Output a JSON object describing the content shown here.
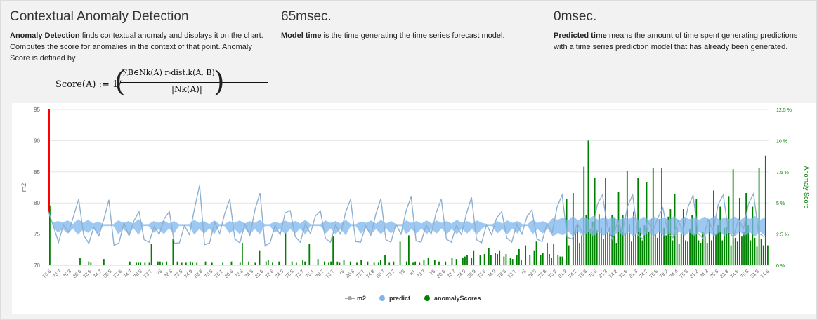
{
  "header": {
    "detection": {
      "title": "Contextual Anomaly Detection",
      "desc_bold": "Anomaly Detection",
      "desc_rest": " finds contextual anomaly and displays it on the chart. Computes the score for anomalies in the context of that point. Anomaly Score is defined by"
    },
    "model_time": {
      "title": "65msec.",
      "desc_bold": "Model time",
      "desc_rest": " is the time generating the time series forecast model."
    },
    "predicted_time": {
      "title": "0msec.",
      "desc_bold": "Predicted time",
      "desc_rest": " means the amount of time spent generating predictions with a time series prediction model that has already been generated."
    }
  },
  "formula": {
    "lhs": "Score(A) := 1/",
    "numerator": "∑B∈Nk(A) r-dist.k(A, B)",
    "denominator": "|Nk(A)|"
  },
  "chart_data": {
    "type": "line",
    "ylabel": "m2",
    "ylabel_right": "Anomaly Score",
    "ylim": [
      70,
      95
    ],
    "yticks": [
      "70",
      "75",
      "80",
      "85",
      "90",
      "95"
    ],
    "ylim_right": [
      0,
      12.5
    ],
    "yticks_right": [
      "0 %",
      "2.5 %",
      "5 %",
      "7.5 %",
      "10 %",
      "12.5 %"
    ],
    "grid": true,
    "legend_position": "bottom-center",
    "x_tick_labels": [
      "78.6",
      "73.7",
      "75.3",
      "80.6",
      "73.5",
      "74.7",
      "80.5",
      "73.6",
      "74.7",
      "78.6",
      "73.7",
      "75",
      "78.6",
      "73.6",
      "74.9",
      "82.8",
      "73.6",
      "75.1",
      "80.6",
      "73.6",
      "74.8",
      "81.6",
      "73.6",
      "74.9",
      "78.8",
      "73.7",
      "75.1",
      "78.7",
      "73.7",
      "75",
      "80.6",
      "73.7",
      "74.8",
      "80.7",
      "73.7",
      "75",
      "81",
      "73.7",
      "75",
      "80.6",
      "73.7",
      "74.9",
      "80.9",
      "73.6",
      "74.9",
      "78.6",
      "73.7",
      "75",
      "78.9",
      "73.8",
      "75.2",
      "81.3",
      "74.2",
      "75.3",
      "75.6",
      "81.3",
      "74.2",
      "75.5",
      "81.3",
      "74.2",
      "75.5",
      "79.2",
      "74.4",
      "75.5",
      "81.2",
      "74.3",
      "75.6",
      "81.3",
      "74.5",
      "75.8",
      "81.5",
      "74.6"
    ],
    "series": [
      {
        "name": "m2",
        "color": "#a6a6a6"
      },
      {
        "name": "predict",
        "color": "#7cb5ec"
      },
      {
        "name": "anomalyScores",
        "color": "#008000"
      }
    ],
    "anomaly_marker": {
      "x_index": 0,
      "value": 95,
      "color": "#ff0000"
    },
    "m2_values": [
      78.6,
      76.2,
      73.7,
      76.5,
      75.3,
      77.9,
      80.6,
      74.8,
      73.5,
      76.1,
      74.7,
      77.4,
      80.5,
      73.2,
      73.6,
      76.8,
      74.7,
      77.2,
      78.6,
      74.1,
      73.7,
      76.2,
      75,
      77.5,
      78.6,
      73.5,
      73.6,
      76.4,
      74.9,
      79.1,
      82.8,
      73.3,
      73.6,
      76.9,
      75.1,
      78.3,
      80.6,
      74.2,
      73.6,
      76.6,
      74.8,
      78.9,
      81.6,
      73.1,
      73.6,
      76.4,
      74.9,
      78.4,
      78.8,
      74.6,
      73.7,
      76.6,
      75.1,
      77.9,
      78.7,
      74.3,
      73.7,
      76.5,
      75,
      78.5,
      80.6,
      73.8,
      73.7,
      76.4,
      74.8,
      78.2,
      80.7,
      74.1,
      73.7,
      76.6,
      75,
      78.7,
      81,
      73.9,
      73.7,
      76.5,
      75,
      78.5,
      80.6,
      74.2,
      73.7,
      76.4,
      74.9,
      78.3,
      80.9,
      74.1,
      73.6,
      76.5,
      74.9,
      77.6,
      78.6,
      74.4,
      73.7,
      76.6,
      75,
      77.8,
      78.9,
      74.2,
      73.8,
      76.7,
      75.2,
      79.4,
      81.3,
      74.5,
      74.2,
      76.7,
      75.3,
      75.4,
      75.6,
      79.8,
      81.3,
      76.1,
      74.2,
      77,
      75.5,
      79.5,
      81.3,
      74.9,
      74.2,
      77.1,
      75.5,
      77.6,
      79.2,
      75.1,
      74.4,
      77.2,
      75.5,
      79.4,
      81.2,
      75.1,
      74.3,
      77.3,
      75.6,
      79.8,
      81.3,
      75.4,
      74.5,
      77.4,
      75.8,
      79.9,
      81.5,
      75.2,
      74.6
    ],
    "predict_band": [
      [
        76.4,
        76.8
      ],
      [
        75.2,
        77.1
      ],
      [
        75.8,
        76.9
      ],
      [
        75.1,
        77.2
      ],
      [
        75.9,
        76.6
      ],
      [
        74.9,
        77.4
      ],
      [
        75.7,
        76.8
      ],
      [
        75.2,
        77.3
      ],
      [
        75.9,
        76.7
      ],
      [
        75.0,
        77.0
      ],
      [
        76.3,
        76.6
      ],
      [
        76.3,
        76.6
      ],
      [
        76.3,
        76.6
      ],
      [
        75.0,
        77.2
      ],
      [
        75.8,
        76.8
      ],
      [
        75.0,
        77.1
      ],
      [
        75.9,
        76.7
      ],
      [
        74.9,
        77.4
      ],
      [
        76.3,
        76.6
      ],
      [
        76.3,
        76.6
      ],
      [
        75.2,
        77.1
      ],
      [
        75.8,
        76.8
      ],
      [
        75.0,
        77.2
      ],
      [
        75.9,
        76.7
      ],
      [
        75.1,
        77.1
      ],
      [
        76.3,
        76.6
      ],
      [
        76.3,
        76.6
      ],
      [
        76.3,
        76.6
      ],
      [
        74.9,
        77.3
      ],
      [
        75.8,
        76.8
      ],
      [
        75.1,
        77.1
      ],
      [
        75.9,
        76.6
      ],
      [
        75.0,
        77.2
      ],
      [
        76.3,
        76.6
      ],
      [
        76.3,
        76.6
      ],
      [
        75.1,
        77.1
      ],
      [
        75.8,
        76.8
      ],
      [
        75.0,
        77.2
      ],
      [
        75.9,
        76.7
      ],
      [
        75.0,
        77.1
      ],
      [
        75.8,
        76.8
      ],
      [
        75.0,
        77.3
      ],
      [
        76.3,
        76.6
      ],
      [
        76.3,
        76.6
      ],
      [
        75.2,
        77.0
      ],
      [
        75.9,
        76.7
      ],
      [
        75.0,
        77.2
      ],
      [
        75.8,
        76.8
      ],
      [
        75.1,
        77.1
      ],
      [
        75.9,
        76.7
      ],
      [
        74.9,
        77.3
      ],
      [
        76.3,
        76.6
      ],
      [
        76.3,
        76.6
      ],
      [
        76.3,
        76.6
      ],
      [
        75.1,
        77.2
      ],
      [
        75.9,
        76.8
      ],
      [
        75.0,
        77.1
      ],
      [
        75.8,
        76.7
      ],
      [
        74.8,
        77.3
      ],
      [
        76.3,
        76.6
      ],
      [
        76.3,
        76.6
      ],
      [
        75.1,
        77.0
      ],
      [
        75.9,
        76.8
      ],
      [
        75.0,
        77.2
      ],
      [
        75.8,
        76.7
      ],
      [
        75.0,
        77.3
      ],
      [
        75.9,
        76.7
      ],
      [
        75.1,
        77.1
      ],
      [
        76.3,
        76.6
      ],
      [
        76.3,
        76.6
      ],
      [
        75.0,
        77.2
      ],
      [
        75.8,
        76.8
      ],
      [
        75.1,
        77.1
      ],
      [
        75.9,
        76.7
      ],
      [
        75.0,
        77.2
      ],
      [
        75.8,
        76.7
      ],
      [
        75.1,
        77.2
      ],
      [
        75.9,
        76.8
      ],
      [
        75.0,
        77.1
      ],
      [
        75.8,
        76.7
      ],
      [
        75.0,
        77.3
      ],
      [
        75.9,
        76.8
      ],
      [
        75.1,
        77.1
      ],
      [
        75.8,
        76.7
      ],
      [
        75.0,
        77.2
      ],
      [
        75.9,
        76.8
      ],
      [
        76.3,
        76.6
      ],
      [
        76.3,
        76.6
      ],
      [
        75.1,
        77.1
      ],
      [
        75.8,
        76.7
      ],
      [
        75.0,
        77.2
      ],
      [
        75.9,
        76.8
      ],
      [
        75.1,
        77.1
      ],
      [
        76.3,
        76.6
      ],
      [
        76.3,
        76.6
      ],
      [
        75.0,
        77.3
      ],
      [
        75.8,
        76.8
      ],
      [
        75.1,
        77.1
      ],
      [
        75.9,
        76.7
      ],
      [
        74.6,
        77.6
      ],
      [
        75.2,
        77.3
      ],
      [
        74.8,
        77.7
      ],
      [
        75.5,
        77.2
      ],
      [
        74.6,
        77.9
      ],
      [
        75.4,
        77.2
      ],
      [
        74.7,
        77.8
      ],
      [
        75.3,
        77.4
      ],
      [
        74.6,
        77.9
      ],
      [
        75.4,
        77.3
      ],
      [
        74.7,
        77.7
      ],
      [
        75.3,
        77.4
      ],
      [
        74.6,
        77.8
      ],
      [
        75.4,
        77.2
      ],
      [
        74.7,
        77.7
      ],
      [
        75.3,
        77.4
      ],
      [
        74.6,
        77.9
      ],
      [
        75.4,
        77.3
      ],
      [
        74.7,
        77.8
      ],
      [
        75.3,
        77.3
      ],
      [
        74.6,
        77.8
      ],
      [
        75.4,
        77.4
      ],
      [
        74.7,
        77.7
      ],
      [
        75.3,
        77.3
      ],
      [
        74.6,
        77.9
      ],
      [
        75.4,
        77.2
      ],
      [
        74.7,
        77.8
      ],
      [
        75.3,
        77.4
      ],
      [
        74.6,
        77.7
      ],
      [
        75.4,
        77.3
      ],
      [
        74.7,
        77.8
      ],
      [
        75.3,
        77.4
      ],
      [
        74.6,
        77.9
      ],
      [
        75.4,
        77.3
      ],
      [
        74.7,
        77.7
      ],
      [
        75.3,
        77.4
      ],
      [
        74.6,
        77.8
      ],
      [
        75.4,
        77.2
      ],
      [
        74.7,
        77.8
      ],
      [
        75.3,
        77.4
      ],
      [
        74.6,
        77.9
      ],
      [
        75.4,
        77.3
      ],
      [
        74.7,
        77.7
      ]
    ],
    "anomaly_scores": [
      4.8,
      0,
      0,
      0,
      0,
      0,
      0,
      0,
      0,
      0,
      0,
      0,
      0,
      0,
      0.6,
      0,
      0,
      0,
      0.3,
      0.2,
      0,
      0,
      0,
      0,
      0,
      0.5,
      0,
      0,
      0,
      0,
      0,
      0,
      0,
      0,
      0,
      0,
      0,
      0.3,
      0,
      0,
      0.2,
      0.2,
      0.2,
      0,
      0.2,
      0,
      0.2,
      1.7,
      0,
      0,
      0.3,
      0.3,
      0.2,
      0,
      0.3,
      0,
      0,
      2.1,
      0,
      0.3,
      0,
      0.2,
      0,
      0.2,
      0,
      0.3,
      0.2,
      0,
      0.2,
      0,
      0,
      0,
      0.3,
      0,
      0,
      0.2,
      0,
      0,
      0,
      0,
      0.2,
      0,
      0,
      0,
      0.3,
      0,
      0,
      0,
      0.2,
      1.8,
      0,
      0,
      0.3,
      0,
      0,
      0.2,
      0,
      1.2,
      0,
      0,
      0.3,
      0.4,
      0,
      0.2,
      0,
      0,
      0.3,
      0,
      0,
      2.6,
      0,
      0,
      0.3,
      0,
      0.2,
      0,
      0,
      0.4,
      0.3,
      0,
      1.7,
      0,
      0,
      0,
      0.5,
      0,
      0,
      0.3,
      0,
      0.2,
      0.3,
      2.3,
      0,
      0.3,
      0.2,
      0,
      0.4,
      0,
      0,
      0.3,
      0,
      0,
      0.2,
      0,
      0.4,
      0,
      0,
      0.3,
      0,
      0,
      0.2,
      0,
      0.2,
      0.4,
      0,
      0.8,
      0,
      0.2,
      0,
      0.3,
      0,
      0,
      1.9,
      0,
      0,
      0.3,
      2.4,
      0,
      0.2,
      0.3,
      0,
      0.2,
      0,
      0.4,
      0,
      0.6,
      0,
      0,
      0.4,
      0,
      0.3,
      0,
      0,
      0.3,
      0,
      0,
      0.6,
      0,
      0.5,
      0,
      0,
      0.6,
      0.7,
      0.8,
      0,
      0.6,
      1.2,
      0,
      0,
      0.8,
      0,
      0.9,
      0,
      1.4,
      0.8,
      0,
      1.0,
      0.9,
      1.2,
      0,
      0.7,
      0.9,
      0,
      0.6,
      0.5,
      0,
      0.8,
      1.3,
      0.4,
      0,
      1.6,
      0,
      0.8,
      0,
      1.2,
      1.9,
      0,
      0.8,
      1.0,
      0,
      1.8,
      0.9,
      0.6,
      1.7,
      0,
      0.8,
      0.7,
      0.7,
      0,
      5.3,
      1.6,
      0,
      5.8,
      2.9,
      3.2,
      1.8,
      2.4,
      7.9,
      4.0,
      10.0,
      2.9,
      3.5,
      7.0,
      2.8,
      4.1,
      3.0,
      2.1,
      7.0,
      2.7,
      3.1,
      4.0,
      3.8,
      1.8,
      5.9,
      2.9,
      4.0,
      2.6,
      7.6,
      3.3,
      1.9,
      4.3,
      2.5,
      7.0,
      3.0,
      2.0,
      3.2,
      6.7,
      2.7,
      3.7,
      7.8,
      2.5,
      2.2,
      3.7,
      7.8,
      3.0,
      2.4,
      3.9,
      4.5,
      2.0,
      5.7,
      3.0,
      1.7,
      2.5,
      4.5,
      2.0,
      1.9,
      2.9,
      4.0,
      2.5,
      5.3,
      2.0,
      1.8,
      2.7,
      2.3,
      1.8,
      3.6,
      2.0,
      6.0,
      2.5,
      3.2,
      4.7,
      2.0,
      3.0,
      3.1,
      5.5,
      1.6,
      7.7,
      2.2,
      1.9,
      5.4,
      2.3,
      2.7,
      5.8,
      3.2,
      2.0,
      4.7,
      2.2,
      1.5,
      7.8,
      2.1,
      1.6,
      8.8,
      1.6
    ]
  }
}
